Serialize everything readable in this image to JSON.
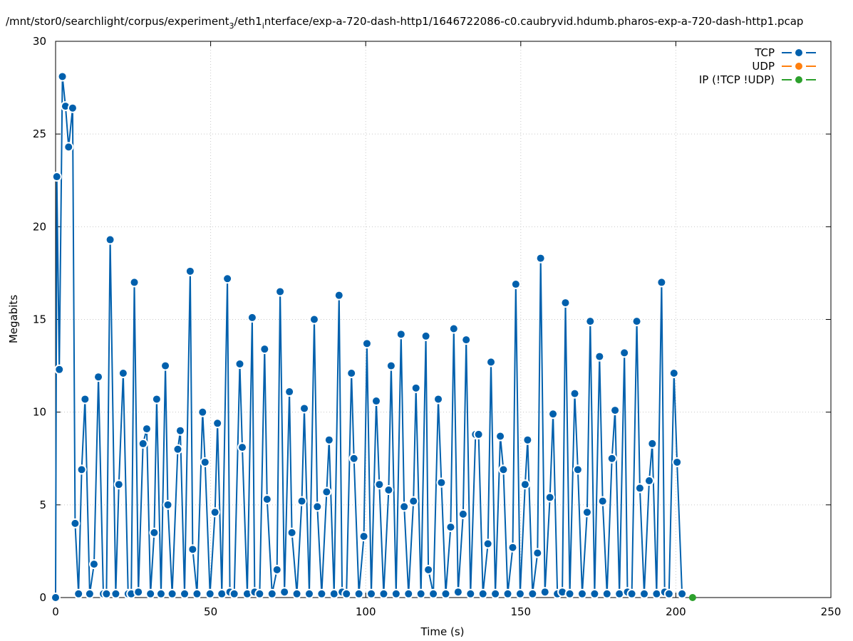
{
  "chart_data": {
    "type": "line",
    "title": "/mnt/stor0/searchlight/corpus/experiment",
    "title_sub": "3",
    "title_part2": "/eth1",
    "title_sub2": "i",
    "title_part3": "nterface/exp-a-720-dash-http1/1646722086-c0.caubryvid.hdumb.pharos-exp-a-720-dash-http1.pcap",
    "xlabel": "Time (s)",
    "ylabel": "Megabits",
    "xlim": [
      0,
      250
    ],
    "ylim": [
      0,
      30
    ],
    "xticks": [
      0,
      50,
      100,
      150,
      200,
      250
    ],
    "yticks": [
      0,
      5,
      10,
      15,
      20,
      25,
      30
    ],
    "grid": true,
    "legend_position": "top-right",
    "colors": {
      "TCP": "#0060ad",
      "UDP": "#ff7f0e",
      "IP": "#2ca02c"
    },
    "series": [
      {
        "name": "TCP",
        "x": [
          0,
          0.4,
          1.2,
          2.2,
          3.2,
          4.2,
          5.5,
          6.3,
          7.4,
          8.4,
          9.5,
          11.0,
          12.4,
          13.8,
          15.4,
          16.4,
          17.6,
          19.4,
          20.4,
          21.8,
          23.4,
          24.4,
          25.4,
          26.7,
          28.2,
          29.4,
          30.6,
          31.8,
          32.6,
          34.0,
          35.4,
          36.2,
          37.6,
          39.4,
          40.2,
          41.6,
          43.4,
          44.2,
          45.6,
          47.4,
          48.2,
          49.8,
          51.4,
          52.2,
          53.6,
          55.4,
          56.2,
          57.6,
          59.4,
          60.2,
          61.8,
          63.4,
          64.2,
          65.8,
          67.4,
          68.2,
          69.8,
          71.4,
          72.4,
          73.8,
          75.4,
          76.2,
          77.8,
          79.4,
          80.2,
          81.8,
          83.4,
          84.4,
          85.8,
          87.4,
          88.2,
          89.8,
          91.4,
          92.4,
          93.8,
          95.4,
          96.2,
          97.8,
          99.4,
          100.4,
          101.8,
          103.4,
          104.4,
          105.8,
          107.4,
          108.2,
          109.8,
          111.4,
          112.4,
          113.8,
          115.4,
          116.2,
          117.8,
          119.4,
          120.2,
          121.8,
          123.4,
          124.4,
          125.8,
          127.4,
          128.4,
          129.8,
          131.4,
          132.4,
          133.8,
          135.4,
          136.4,
          137.8,
          139.4,
          140.4,
          141.8,
          143.4,
          144.4,
          145.8,
          147.4,
          148.4,
          149.8,
          151.4,
          152.2,
          153.8,
          155.4,
          156.4,
          157.8,
          159.4,
          160.4,
          161.8,
          163.4,
          164.4,
          165.8,
          167.4,
          168.4,
          169.8,
          171.4,
          172.4,
          173.8,
          175.4,
          176.4,
          177.8,
          179.4,
          180.4,
          181.8,
          183.4,
          184.4,
          185.8,
          187.4,
          188.4,
          189.8,
          191.4,
          192.4,
          193.8,
          195.4,
          196.4,
          197.8,
          199.4,
          200.4,
          202.0
        ],
        "values": [
          0,
          22.7,
          12.3,
          28.1,
          26.5,
          24.3,
          26.4,
          4.0,
          0.2,
          6.9,
          10.7,
          0.2,
          1.8,
          11.9,
          0.2,
          0.2,
          19.3,
          0.2,
          6.1,
          12.1,
          0.2,
          0.2,
          17.0,
          0.3,
          8.3,
          9.1,
          0.2,
          3.5,
          10.7,
          0.2,
          12.5,
          5.0,
          0.2,
          8.0,
          9.0,
          0.2,
          17.6,
          2.6,
          0.2,
          10.0,
          7.3,
          0.2,
          4.6,
          9.4,
          0.2,
          17.2,
          0.3,
          0.2,
          12.6,
          8.1,
          0.2,
          15.1,
          0.3,
          0.2,
          13.4,
          5.3,
          0.2,
          1.5,
          16.5,
          0.3,
          11.1,
          3.5,
          0.2,
          5.2,
          10.2,
          0.2,
          15.0,
          4.9,
          0.2,
          5.7,
          8.5,
          0.2,
          16.3,
          0.3,
          0.2,
          12.1,
          7.5,
          0.2,
          3.3,
          13.7,
          0.2,
          10.6,
          6.1,
          0.2,
          5.8,
          12.5,
          0.2,
          14.2,
          4.9,
          0.2,
          5.2,
          11.3,
          0.2,
          14.1,
          1.5,
          0.2,
          10.7,
          6.2,
          0.2,
          3.8,
          14.5,
          0.3,
          4.5,
          13.9,
          0.2,
          8.8,
          8.8,
          0.2,
          2.9,
          12.7,
          0.2,
          8.7,
          6.9,
          0.2,
          2.7,
          16.9,
          0.2,
          6.1,
          8.5,
          0.2,
          2.4,
          18.3,
          0.3,
          5.4,
          9.9,
          0.2,
          0.3,
          15.9,
          0.2,
          11.0,
          6.9,
          0.2,
          4.6,
          14.9,
          0.2,
          13.0,
          5.2,
          0.2,
          7.5,
          10.1,
          0.2,
          13.2,
          0.3,
          0.2,
          14.9,
          5.9,
          0.2,
          6.3,
          8.3,
          0.2,
          17.0,
          0.3,
          0.2,
          12.1,
          7.3,
          0.2
        ]
      },
      {
        "name": "UDP",
        "x": [],
        "values": []
      },
      {
        "name": "IP (!TCP  !UDP)",
        "x": [
          205.4
        ],
        "values": [
          0
        ]
      }
    ]
  }
}
